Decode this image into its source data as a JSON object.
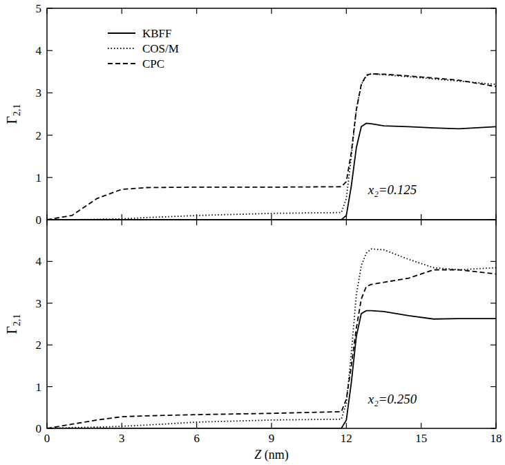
{
  "chart_data": [
    {
      "type": "line",
      "ylabel": "Γ2,1",
      "annotation": "x₂=0.125",
      "x": [
        0,
        1,
        2,
        3,
        4,
        6,
        9,
        11.8,
        12,
        12.2,
        12.4,
        12.6,
        12.8,
        13,
        13.5,
        14.5,
        15.5,
        16.5,
        18
      ],
      "series": [
        {
          "name": "KBFF",
          "color": "#000000",
          "line_style": "solid",
          "values": [
            0,
            0,
            0,
            0,
            0,
            0,
            0,
            0,
            0.1,
            0.8,
            1.7,
            2.2,
            2.28,
            2.27,
            2.22,
            2.2,
            2.17,
            2.15,
            2.2
          ]
        },
        {
          "name": "COS/M",
          "color": "#000000",
          "line_style": "dotted",
          "values": [
            0,
            0,
            0.01,
            0.02,
            0.05,
            0.1,
            0.15,
            0.17,
            0.5,
            1.5,
            2.6,
            3.2,
            3.4,
            3.45,
            3.43,
            3.38,
            3.33,
            3.28,
            3.2
          ]
        },
        {
          "name": "CPC",
          "color": "#000000",
          "line_style": "dashed",
          "values": [
            0,
            0.1,
            0.5,
            0.72,
            0.76,
            0.77,
            0.77,
            0.78,
            0.9,
            1.6,
            2.6,
            3.2,
            3.42,
            3.45,
            3.44,
            3.4,
            3.35,
            3.3,
            3.15
          ]
        }
      ],
      "xlim": [
        0,
        18
      ],
      "xticks": [
        0,
        3,
        6,
        9,
        12,
        15,
        18
      ],
      "ylim": [
        0,
        5
      ],
      "yticks": [
        0,
        1,
        2,
        3,
        4,
        5
      ],
      "legend": "upper left",
      "tick_labels": "y"
    },
    {
      "type": "line",
      "ylabel": "Γ2,1",
      "xlabel": "Z (nm)",
      "annotation": "x₂=0.250",
      "x": [
        0,
        1,
        2,
        3,
        4,
        6,
        9,
        11.8,
        12,
        12.2,
        12.4,
        12.6,
        12.8,
        13,
        13.5,
        14.5,
        15.5,
        16.5,
        18
      ],
      "series": [
        {
          "name": "KBFF",
          "color": "#000000",
          "line_style": "solid",
          "values": [
            0,
            0,
            0,
            0,
            0,
            0,
            0,
            0,
            0.2,
            1.1,
            2.2,
            2.75,
            2.82,
            2.82,
            2.8,
            2.7,
            2.62,
            2.63,
            2.63
          ]
        },
        {
          "name": "COS/M",
          "color": "#000000",
          "line_style": "dotted",
          "values": [
            0,
            0.02,
            0.03,
            0.05,
            0.08,
            0.15,
            0.2,
            0.22,
            0.6,
            1.8,
            3.2,
            3.9,
            4.2,
            4.3,
            4.28,
            4.05,
            3.85,
            3.8,
            3.85
          ]
        },
        {
          "name": "CPC",
          "color": "#000000",
          "line_style": "dashed",
          "values": [
            0,
            0.1,
            0.2,
            0.28,
            0.3,
            0.33,
            0.36,
            0.4,
            0.7,
            1.5,
            2.4,
            3.1,
            3.4,
            3.45,
            3.5,
            3.6,
            3.8,
            3.8,
            3.7
          ]
        }
      ],
      "xlim": [
        0,
        18
      ],
      "xticks": [
        0,
        3,
        6,
        9,
        12,
        15,
        18
      ],
      "ylim": [
        0,
        5
      ],
      "yticks": [
        0,
        1,
        2,
        3,
        4
      ]
    }
  ]
}
